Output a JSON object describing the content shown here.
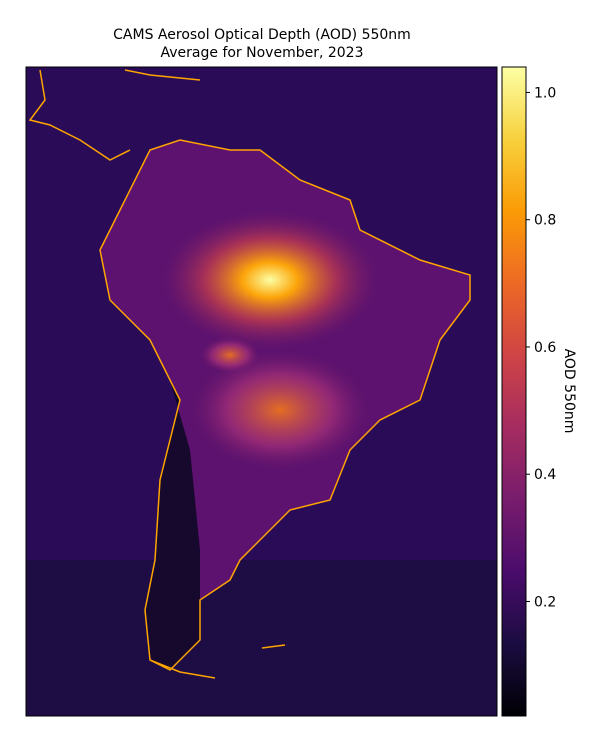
{
  "title": [
    "CAMS Aerosol Optical Depth (AOD) 550nm",
    "Average for November, 2023"
  ],
  "colorbar": {
    "label": "AOD 550nm",
    "colormap": "inferno",
    "lim": [
      0.02,
      1.04
    ],
    "ticks": [
      0.2,
      0.4,
      0.6,
      0.8,
      {
        "value": 1,
        "label": "1.0"
      }
    ]
  }
}
